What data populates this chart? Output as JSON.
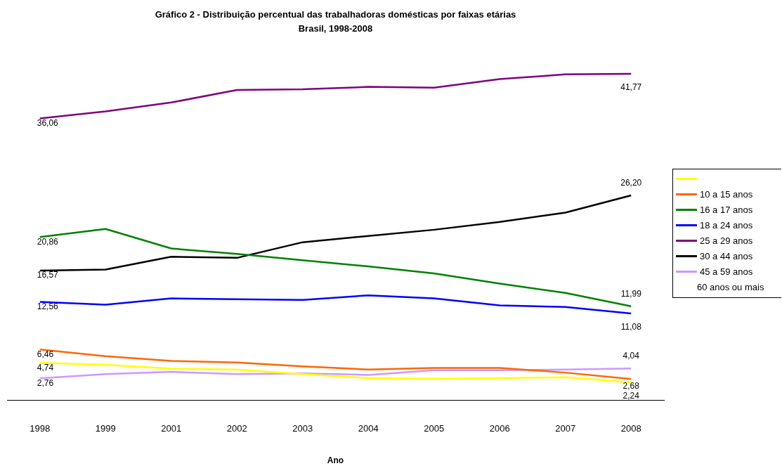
{
  "chart_data": {
    "type": "line",
    "title": "Gráfico 2 - Distribuição percentual das trabalhadoras domésticas por faixas etárias",
    "subtitle": "Brasil, 1998-2008",
    "xlabel": "Ano",
    "categories": [
      "1998",
      "1999",
      "2001",
      "2002",
      "2003",
      "2004",
      "2005",
      "2006",
      "2007",
      "2008"
    ],
    "tick_labels": "x",
    "grid": false,
    "legend": "right",
    "marker": "none",
    "line_style": "solid",
    "series": [
      {
        "color": "#ffff00",
        "values": [
          4.74,
          4.5,
          4.0,
          3.9,
          3.3,
          2.8,
          2.7,
          2.8,
          2.9,
          2.24
        ],
        "value_labels": [
          "4,74",
          null,
          null,
          null,
          null,
          null,
          null,
          null,
          null,
          "2,24"
        ]
      },
      {
        "name": "10 a 15 anos",
        "color": "#ff6600",
        "values": [
          6.46,
          5.6,
          5.0,
          4.8,
          4.3,
          3.9,
          4.1,
          4.1,
          3.5,
          2.68
        ],
        "value_labels": [
          "6,46",
          null,
          null,
          null,
          null,
          null,
          null,
          null,
          null,
          "2,68"
        ]
      },
      {
        "name": "16 a 17 anos",
        "color": "#008000",
        "values": [
          20.86,
          21.9,
          19.4,
          18.7,
          17.9,
          17.1,
          16.2,
          14.9,
          13.7,
          11.99
        ],
        "value_labels": [
          "20,86",
          null,
          null,
          null,
          null,
          null,
          null,
          null,
          null,
          "11,99"
        ]
      },
      {
        "name": "18 a 24 anos",
        "color": "#0000ff",
        "values": [
          12.56,
          12.2,
          13.0,
          12.9,
          12.8,
          13.4,
          13.0,
          12.1,
          11.9,
          11.08
        ],
        "value_labels": [
          "12,56",
          null,
          null,
          null,
          null,
          null,
          null,
          null,
          null,
          "11,08"
        ]
      },
      {
        "name": "25 a 29 anos",
        "color": "#800080",
        "values": [
          36.06,
          36.95,
          38.1,
          39.7,
          39.8,
          40.1,
          40.0,
          41.1,
          41.7,
          41.77
        ],
        "value_labels": [
          "36,06",
          null,
          null,
          null,
          null,
          null,
          null,
          null,
          null,
          "41,77"
        ]
      },
      {
        "name": "30 a 44 anos",
        "color": "#000000",
        "values": [
          16.57,
          16.7,
          18.35,
          18.2,
          20.2,
          21.0,
          21.8,
          22.8,
          24.0,
          26.2
        ],
        "value_labels": [
          "16,57",
          null,
          null,
          null,
          null,
          null,
          null,
          null,
          null,
          "26,20"
        ]
      },
      {
        "name": "45 a 59 anos",
        "color": "#cc99ff",
        "values": [
          2.76,
          3.3,
          3.6,
          3.3,
          3.4,
          3.2,
          3.8,
          3.8,
          3.9,
          4.04
        ],
        "value_labels": [
          "2,76",
          null,
          null,
          null,
          null,
          null,
          null,
          null,
          null,
          "4,04"
        ]
      }
    ],
    "annotations": [
      "60 anos ou mais"
    ]
  }
}
